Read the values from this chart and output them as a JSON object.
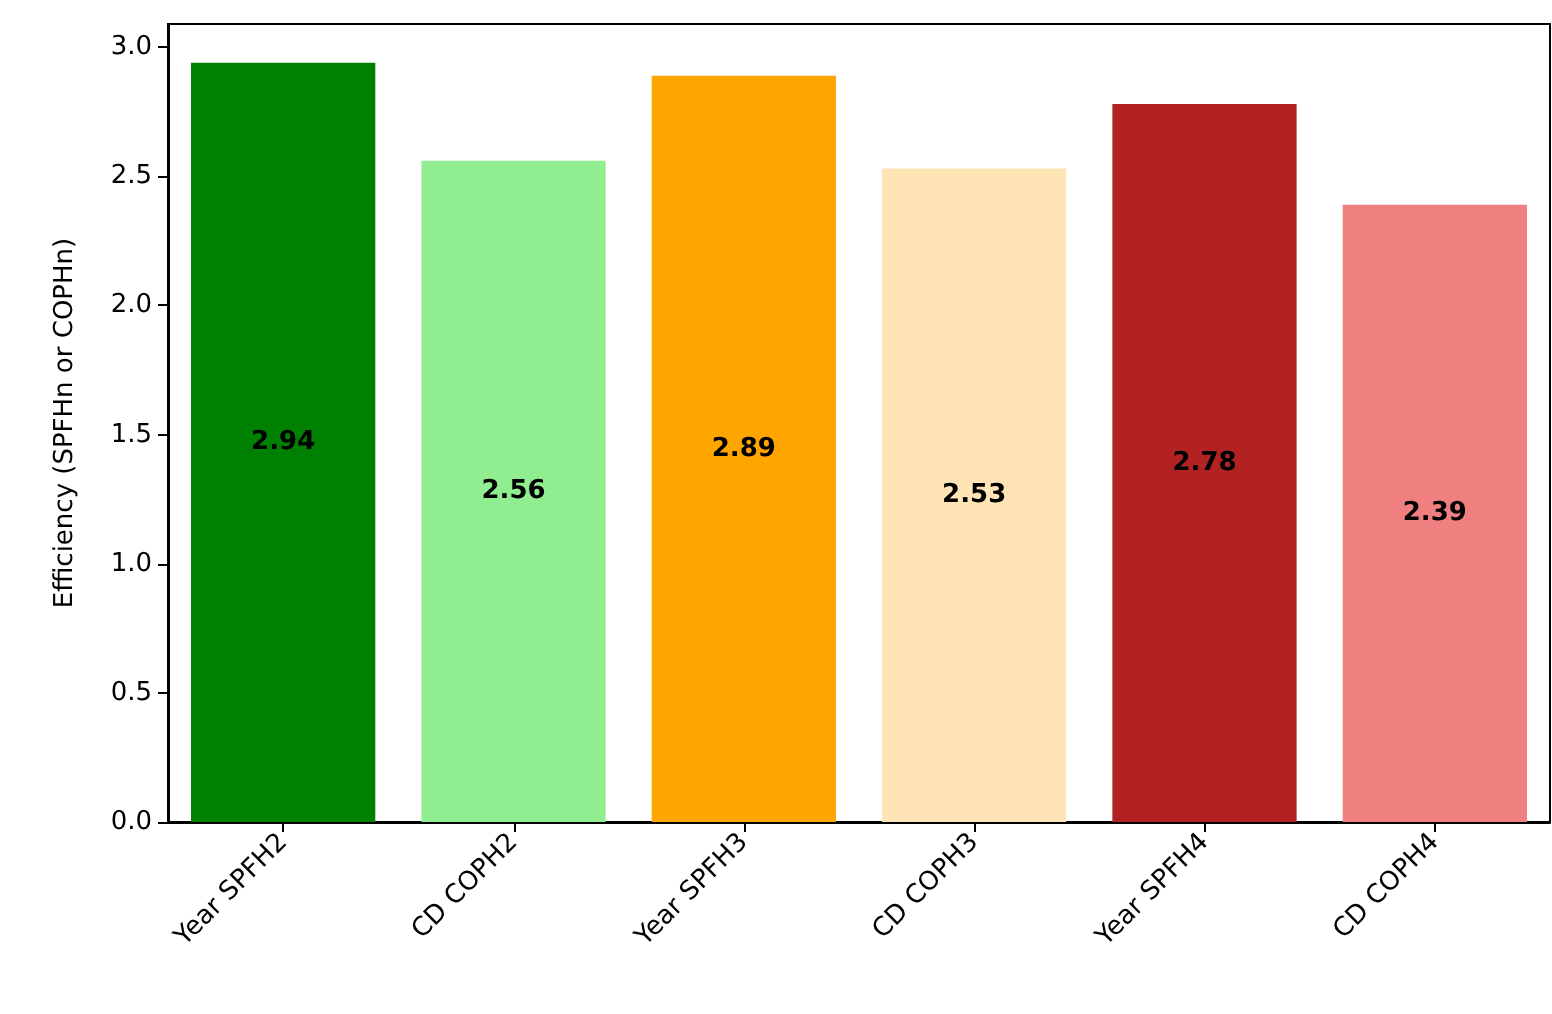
{
  "chart_data": {
    "type": "bar",
    "ylabel": "Efficiency (SPFHn or COPHn)",
    "categories": [
      "Year SPFH2",
      "CD COPH2",
      "Year SPFH3",
      "CD COPH3",
      "Year SPFH4",
      "CD COPH4"
    ],
    "values": [
      2.94,
      2.56,
      2.89,
      2.53,
      2.78,
      2.39
    ],
    "colors": [
      "#008000",
      "#90ee90",
      "#ffa500",
      "#ffe4b5",
      "#b22222",
      "#f08080"
    ],
    "ylim": [
      0,
      3.09
    ],
    "yticks": [
      {
        "value": 0,
        "label": "0.0"
      },
      {
        "value": 0.5,
        "label": "0.5"
      },
      {
        "value": 1,
        "label": "1.0"
      },
      {
        "value": 1.5,
        "label": "1.5"
      },
      {
        "value": 2,
        "label": "2.0"
      },
      {
        "value": 2.5,
        "label": "2.5"
      },
      {
        "value": 3,
        "label": "3.0"
      }
    ],
    "data_labels": true
  }
}
